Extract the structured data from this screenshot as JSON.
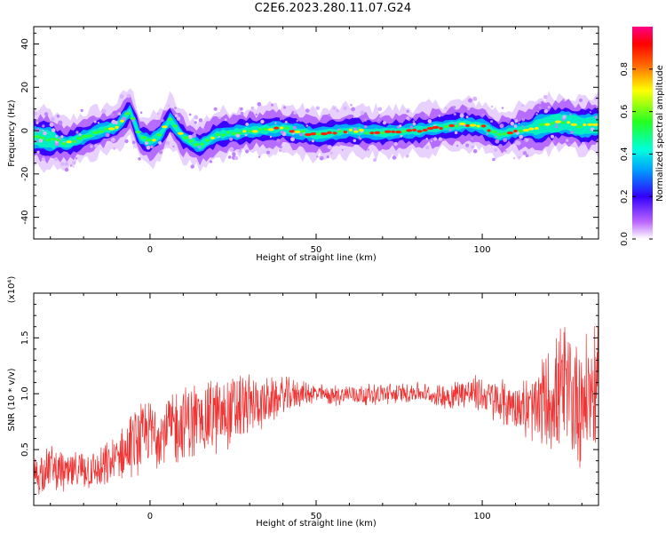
{
  "title": "C2E6.2023.280.11.07.G24",
  "colors": {
    "snr_line": "#ee3333",
    "axes": "#000000"
  },
  "chart_data": [
    {
      "type": "heatmap",
      "name": "spectrogram",
      "xlabel": "Height of straight line (km)",
      "ylabel": "Frequency (Hz)",
      "xlim": [
        -35,
        135
      ],
      "ylim": [
        -50,
        48
      ],
      "x_ticks": [
        0,
        50,
        100
      ],
      "y_ticks": [
        -40,
        -20,
        0,
        20,
        40
      ],
      "colorbar": {
        "label": "Normalized spectral amplitude",
        "range": [
          0.0,
          1.0
        ],
        "ticks": [
          "0.0",
          "0.2",
          "0.4",
          "0.6",
          "0.8"
        ],
        "colormap": "rainbow (white, purple, blue, cyan, green, yellow, red, magenta)"
      },
      "ridge": {
        "x": [
          -35,
          -30,
          -25,
          -20,
          -15,
          -10,
          -6,
          -3,
          0,
          3,
          6,
          10,
          15,
          20,
          25,
          30,
          40,
          50,
          60,
          70,
          80,
          90,
          95,
          100,
          105,
          110,
          115,
          120,
          125,
          130,
          135
        ],
        "y": [
          -3,
          -4,
          -6,
          -3,
          0,
          2,
          9,
          -3,
          -5,
          -2,
          5,
          -3,
          -7,
          -2,
          -1,
          0,
          1,
          -2,
          0,
          -1,
          0,
          2,
          3,
          2,
          -2,
          0,
          1,
          3,
          4,
          2,
          3
        ]
      }
    },
    {
      "type": "line",
      "name": "snr",
      "xlabel": "Height of straight line (km)",
      "ylabel": "SNR (10 * v/v)",
      "y_multiplier": "(x10⁴)",
      "xlim": [
        -35,
        135
      ],
      "ylim": [
        0.0,
        1.9
      ],
      "x_ticks": [
        0,
        50,
        100
      ],
      "y_ticks": [
        0.5,
        1.0,
        1.5
      ],
      "y_tick_labels": [
        "0.5",
        "1.0",
        "1.5"
      ],
      "series": [
        {
          "x": [
            -35,
            -30,
            -25,
            -20,
            -15,
            -10,
            -5,
            0,
            5,
            10,
            15,
            20,
            25,
            30,
            35,
            40,
            45,
            50,
            55,
            60,
            65,
            70,
            75,
            80,
            85,
            90,
            95,
            100,
            105,
            110,
            115,
            120,
            125,
            130,
            135
          ],
          "values": [
            0.25,
            0.35,
            0.28,
            0.32,
            0.3,
            0.42,
            0.55,
            0.65,
            0.68,
            0.72,
            0.78,
            0.8,
            0.85,
            0.9,
            0.92,
            0.98,
            1.0,
            1.0,
            0.98,
            1.0,
            0.99,
            1.0,
            1.0,
            1.02,
            0.98,
            0.98,
            1.02,
            0.99,
            0.92,
            0.9,
            0.85,
            0.95,
            1.0,
            0.95,
            1.05
          ],
          "spread": [
            0.18,
            0.18,
            0.15,
            0.15,
            0.18,
            0.2,
            0.25,
            0.28,
            0.3,
            0.3,
            0.3,
            0.3,
            0.28,
            0.25,
            0.18,
            0.15,
            0.1,
            0.08,
            0.08,
            0.08,
            0.08,
            0.08,
            0.08,
            0.08,
            0.08,
            0.1,
            0.12,
            0.15,
            0.18,
            0.2,
            0.28,
            0.4,
            0.55,
            0.55,
            0.45
          ]
        }
      ]
    }
  ]
}
